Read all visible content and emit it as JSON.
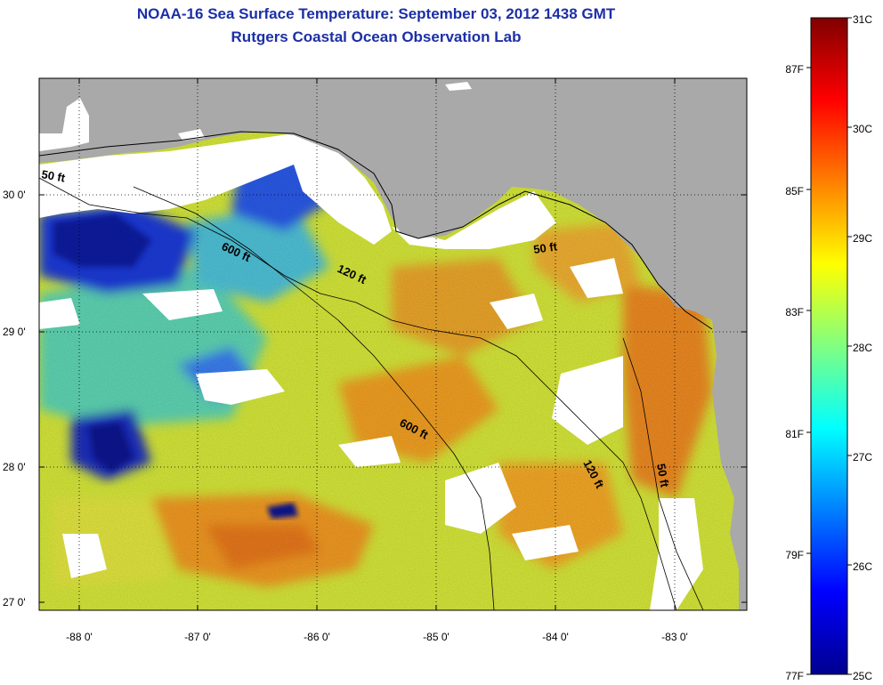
{
  "header": {
    "title_line1": "NOAA-16 Sea Surface Temperature:  September 03, 2012 1438 GMT",
    "title_line2": "Rutgers Coastal Ocean Observation Lab"
  },
  "map": {
    "lat_ticks": [
      "30 0'",
      "29 0'",
      "28 0'",
      "27 0'"
    ],
    "lon_ticks": [
      "-88 0'",
      "-87 0'",
      "-86 0'",
      "-85 0'",
      "-84 0'",
      "-83 0'"
    ],
    "contour_labels": {
      "c50_west": "50 ft",
      "c600_north": "600 ft",
      "c120_north": "120 ft",
      "c50_east": "50 ft",
      "c600_south": "600 ft",
      "c120_south": "120 ft",
      "c50_south": "50 ft"
    },
    "colors": {
      "land": "#a9a9a9",
      "cloud_or_nodata": "#ffffff",
      "grid": "#000000"
    }
  },
  "colorbar": {
    "celsius_labels": [
      "31C",
      "30C",
      "29C",
      "28C",
      "27C",
      "26C",
      "25C"
    ],
    "fahrenheit_labels": [
      "87F",
      "85F",
      "83F",
      "81F",
      "79F",
      "77F"
    ],
    "celsius_range": [
      25,
      31
    ],
    "colormap": "jet"
  }
}
